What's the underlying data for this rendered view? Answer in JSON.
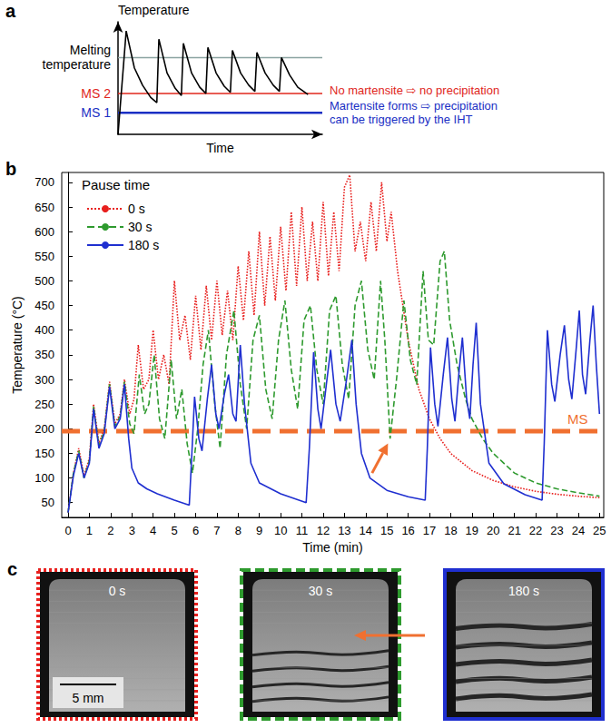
{
  "chart_data": [
    {
      "panel": "a",
      "type": "line",
      "x_label": "Time",
      "y_label": "Temperature",
      "xlim": [
        0,
        10
      ],
      "ylim": [
        0,
        11
      ],
      "tick_labels": false,
      "grid": false,
      "series": [
        {
          "color": "#000000",
          "line_style": "solid",
          "x": [
            0,
            0.4,
            0.8,
            1.2,
            1.6,
            1.9,
            2.0,
            2.4,
            2.8,
            3.1,
            3.2,
            3.6,
            4.0,
            4.3,
            4.4,
            4.8,
            5.2,
            5.5,
            5.6,
            6.0,
            6.4,
            6.7,
            6.8,
            7.2,
            7.6,
            7.9,
            8.0,
            8.4,
            8.8,
            9.3
          ],
          "values": [
            0,
            10.1,
            6.5,
            4.8,
            3.6,
            3.1,
            9.3,
            6.0,
            4.5,
            3.8,
            8.9,
            6.0,
            4.6,
            4.0,
            8.5,
            6.0,
            4.7,
            4.1,
            8.2,
            6.0,
            4.8,
            4.2,
            8.0,
            6.0,
            4.8,
            4.2,
            7.5,
            5.8,
            4.6,
            3.9
          ]
        }
      ],
      "levels": [
        {
          "label": "Melting temperature",
          "value": 7.5,
          "color": "#8aa3a1"
        },
        {
          "label": "MS 2",
          "value": 4.0,
          "color": "#e0261b",
          "annotation": "No martensite ⇨ no precipitation"
        },
        {
          "label": "MS 1",
          "value": 2.1,
          "color": "#1a2fc4",
          "annotation": "Martensite forms ⇨ precipitation can be triggered by the IHT"
        }
      ]
    },
    {
      "panel": "b",
      "type": "line",
      "x_label": "Time (min)",
      "y_label": "Temperature (°C)",
      "xlim": [
        -0.3,
        25.2
      ],
      "xticks": [
        0,
        1,
        2,
        3,
        4,
        5,
        6,
        7,
        8,
        9,
        10,
        11,
        12,
        13,
        14,
        15,
        16,
        17,
        18,
        19,
        20,
        21,
        22,
        23,
        24,
        25
      ],
      "ylim": [
        20,
        720
      ],
      "yticks": [
        50,
        100,
        150,
        200,
        250,
        300,
        350,
        400,
        450,
        500,
        550,
        600,
        650,
        700
      ],
      "grid": false,
      "legend": "top-left",
      "legend_title": "Pause time",
      "series": [
        {
          "name": "0 s",
          "color": "#e8201e",
          "line_style": "dotted",
          "x": [
            0,
            0.25,
            0.5,
            0.75,
            1.0,
            1.2,
            1.45,
            1.7,
            1.95,
            2.2,
            2.45,
            2.65,
            2.9,
            3.1,
            3.3,
            3.55,
            3.8,
            4.0,
            4.25,
            4.5,
            4.75,
            5.0,
            5.25,
            5.5,
            5.75,
            6.0,
            6.25,
            6.5,
            6.75,
            7.0,
            7.25,
            7.5,
            7.75,
            8.0,
            8.25,
            8.5,
            8.75,
            9.0,
            9.25,
            9.5,
            9.75,
            10.0,
            10.25,
            10.5,
            10.75,
            11.0,
            11.25,
            11.5,
            11.75,
            12.0,
            12.25,
            12.5,
            12.75,
            13.0,
            13.25,
            13.5,
            13.75,
            14.0,
            14.25,
            14.5,
            14.75,
            15.0,
            15.2,
            15.5,
            16.0,
            16.5,
            17.0,
            17.5,
            18.0,
            19.0,
            20.0,
            21.0,
            22.0,
            23.0,
            24.0,
            25.0
          ],
          "values": [
            30,
            110,
            160,
            105,
            140,
            250,
            170,
            200,
            295,
            210,
            230,
            300,
            230,
            260,
            370,
            280,
            300,
            400,
            300,
            350,
            290,
            500,
            380,
            430,
            340,
            470,
            360,
            490,
            380,
            500,
            390,
            480,
            380,
            530,
            420,
            560,
            430,
            600,
            450,
            590,
            460,
            610,
            480,
            640,
            490,
            650,
            500,
            620,
            500,
            660,
            510,
            640,
            520,
            690,
            715,
            560,
            620,
            540,
            660,
            560,
            700,
            580,
            640,
            520,
            380,
            280,
            220,
            180,
            150,
            115,
            95,
            82,
            73,
            67,
            63,
            60
          ]
        },
        {
          "name": "30 s",
          "color": "#2e9a2e",
          "line_style": "dashed",
          "x": [
            0,
            0.25,
            0.5,
            0.75,
            1.0,
            1.2,
            1.45,
            1.7,
            1.95,
            2.2,
            2.45,
            2.65,
            2.9,
            3.1,
            3.35,
            3.6,
            3.8,
            4.05,
            4.3,
            4.55,
            4.85,
            5.1,
            5.35,
            5.6,
            5.85,
            6.1,
            6.35,
            6.6,
            6.9,
            7.15,
            7.45,
            7.8,
            8.1,
            8.4,
            8.7,
            9.0,
            9.3,
            9.6,
            9.9,
            10.2,
            10.5,
            10.8,
            11.1,
            11.4,
            11.7,
            12.0,
            12.3,
            12.6,
            12.9,
            13.2,
            13.5,
            13.8,
            14.1,
            14.4,
            14.7,
            14.9,
            15.15,
            15.45,
            15.8,
            16.1,
            16.4,
            16.7,
            16.95,
            17.2,
            17.5,
            17.7,
            17.95,
            18.3,
            18.7,
            19.0,
            19.5,
            20.0,
            21.0,
            22.0,
            23.0,
            24.0,
            25.0
          ],
          "values": [
            30,
            110,
            155,
            100,
            135,
            245,
            165,
            195,
            290,
            205,
            225,
            295,
            210,
            190,
            310,
            230,
            250,
            350,
            220,
            180,
            340,
            220,
            280,
            170,
            110,
            200,
            330,
            400,
            250,
            160,
            350,
            440,
            290,
            200,
            380,
            430,
            280,
            220,
            380,
            460,
            320,
            240,
            420,
            450,
            320,
            250,
            440,
            470,
            330,
            260,
            450,
            500,
            360,
            300,
            500,
            380,
            180,
            300,
            460,
            340,
            290,
            520,
            380,
            370,
            540,
            560,
            420,
            330,
            260,
            220,
            180,
            150,
            110,
            90,
            78,
            70,
            63
          ]
        },
        {
          "name": "180 s",
          "color": "#1f2fd0",
          "line_style": "solid",
          "x": [
            0,
            0.25,
            0.5,
            0.75,
            1.0,
            1.2,
            1.45,
            1.7,
            1.95,
            2.2,
            2.45,
            2.65,
            2.85,
            3.0,
            3.3,
            3.7,
            4.2,
            5.0,
            5.7,
            5.8,
            5.95,
            6.15,
            6.3,
            6.55,
            6.75,
            6.95,
            7.1,
            7.35,
            7.55,
            7.75,
            7.9,
            8.1,
            8.3,
            8.6,
            9.0,
            10.0,
            11.2,
            11.35,
            11.55,
            11.75,
            11.9,
            12.15,
            12.35,
            12.6,
            12.8,
            13.1,
            13.35,
            13.55,
            13.8,
            14.2,
            15.0,
            16.0,
            16.8,
            16.9,
            17.05,
            17.25,
            17.4,
            17.65,
            17.85,
            18.05,
            18.2,
            18.4,
            18.55,
            18.75,
            18.9,
            19.05,
            19.2,
            19.4,
            19.8,
            20.5,
            21.5,
            22.3,
            22.4,
            22.55,
            22.75,
            22.9,
            23.15,
            23.35,
            23.55,
            23.7,
            23.9,
            24.05,
            24.2,
            24.35,
            24.55,
            24.7,
            24.85,
            25.0
          ],
          "values": [
            30,
            105,
            150,
            100,
            130,
            240,
            160,
            190,
            285,
            200,
            220,
            290,
            180,
            120,
            90,
            78,
            68,
            55,
            45,
            130,
            265,
            180,
            155,
            260,
            330,
            230,
            200,
            270,
            310,
            230,
            215,
            370,
            250,
            130,
            90,
            68,
            50,
            160,
            355,
            240,
            200,
            290,
            360,
            250,
            215,
            300,
            380,
            250,
            150,
            100,
            75,
            62,
            55,
            160,
            365,
            250,
            205,
            310,
            385,
            260,
            215,
            320,
            385,
            260,
            220,
            330,
            415,
            250,
            130,
            88,
            66,
            55,
            170,
            400,
            290,
            255,
            350,
            410,
            300,
            260,
            360,
            440,
            310,
            270,
            380,
            450,
            330,
            230
          ]
        }
      ],
      "reference_line": {
        "label": "MS",
        "value": 195,
        "color": "#f07030",
        "line_style": "dashed"
      },
      "arrow": {
        "from": [
          14.3,
          110
        ],
        "to": [
          15.05,
          170
        ],
        "color": "#f07030"
      }
    }
  ],
  "panel_c": {
    "panel": "c",
    "scale_bar": "5 mm",
    "images": [
      {
        "label": "0 s",
        "color": "#e8201e",
        "line_style": "dotted"
      },
      {
        "label": "30 s",
        "color": "#2e9a2e",
        "line_style": "dashed"
      },
      {
        "label": "180 s",
        "color": "#1f2fd0",
        "line_style": "solid"
      }
    ]
  }
}
